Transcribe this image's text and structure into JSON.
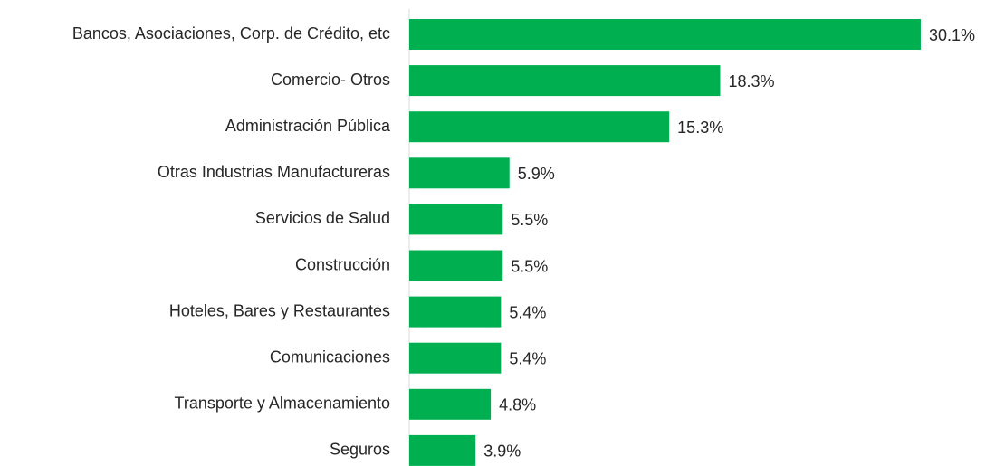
{
  "chart_data": {
    "type": "barh",
    "categories": [
      "Bancos, Asociaciones, Corp. de Crédito, etc",
      "Comercio- Otros",
      "Administración Pública",
      "Otras Industrias Manufactureras",
      "Servicios de Salud",
      "Construcción",
      "Hoteles, Bares y Restaurantes",
      "Comunicaciones",
      "Transporte y Almacenamiento",
      "Seguros"
    ],
    "values": [
      30.1,
      18.3,
      15.3,
      5.9,
      5.5,
      5.5,
      5.4,
      5.4,
      4.8,
      3.9
    ],
    "value_labels": [
      "30.1%",
      "18.3%",
      "15.3%",
      "5.9%",
      "5.5%",
      "5.5%",
      "5.4%",
      "5.4%",
      "4.8%",
      "3.9%"
    ],
    "color": "#00b050"
  }
}
